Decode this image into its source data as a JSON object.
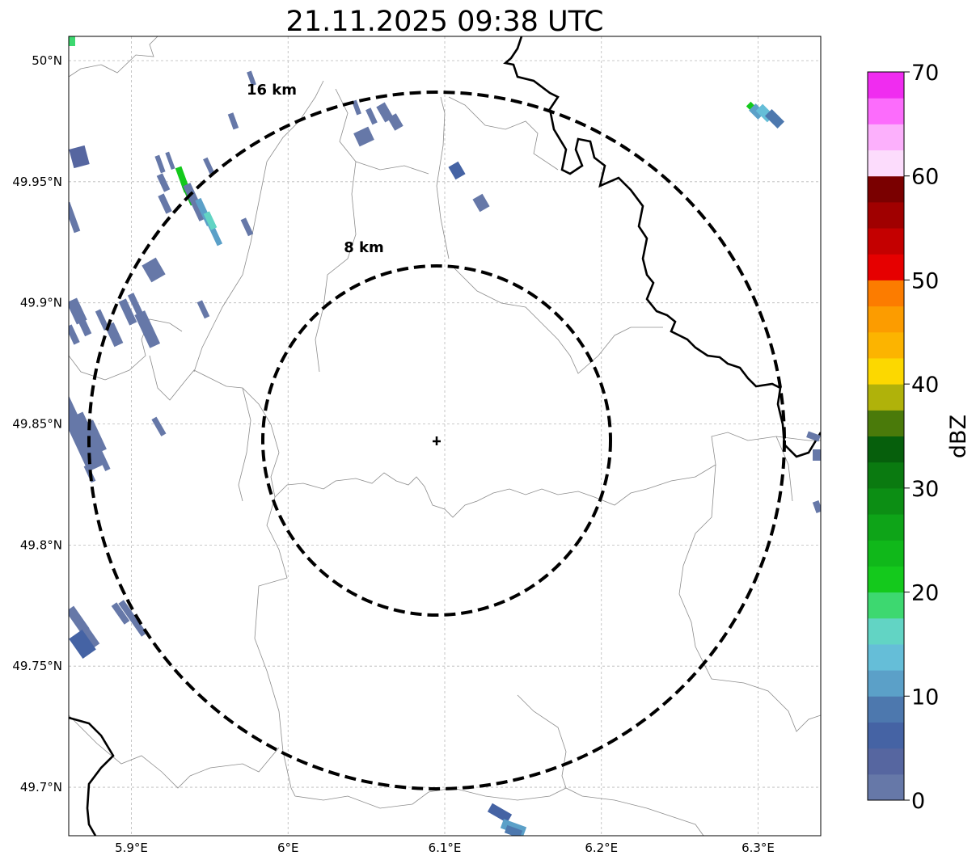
{
  "title": "21.11.2025 09:38 UTC",
  "map": {
    "lon_ticks": [
      {
        "value": 5.9,
        "label": "5.9°E"
      },
      {
        "value": 6.0,
        "label": "6°E"
      },
      {
        "value": 6.1,
        "label": "6.1°E"
      },
      {
        "value": 6.2,
        "label": "6.2°E"
      },
      {
        "value": 6.3,
        "label": "6.3°E"
      }
    ],
    "lat_ticks": [
      {
        "value": 50.0,
        "label": "50°N"
      },
      {
        "value": 49.95,
        "label": "49.95°N"
      },
      {
        "value": 49.9,
        "label": "49.9°N"
      },
      {
        "value": 49.85,
        "label": "49.85°N"
      },
      {
        "value": 49.8,
        "label": "49.8°N"
      },
      {
        "value": 49.75,
        "label": "49.75°N"
      },
      {
        "value": 49.7,
        "label": "49.7°N"
      }
    ],
    "extent": {
      "lon_min": 5.86,
      "lon_max": 6.34,
      "lat_min": 49.68,
      "lat_max": 50.01
    },
    "radar_site": {
      "lon": 6.095,
      "lat": 49.843,
      "marker": "cross-icon"
    },
    "rings": [
      {
        "label": "8 km",
        "radius_km": 8
      },
      {
        "label": "16 km",
        "radius_km": 16
      }
    ]
  },
  "colorbar": {
    "label": "dBZ",
    "ticks": [
      "0",
      "10",
      "20",
      "30",
      "40",
      "50",
      "60",
      "70"
    ],
    "min": 0,
    "max": 70,
    "step": 2.5,
    "colors": [
      "#6678a8",
      "#5666a0",
      "#4563a4",
      "#4d78ae",
      "#5ba0c8",
      "#65bed8",
      "#62d4c4",
      "#3dd870",
      "#14c91c",
      "#10b81a",
      "#0ea418",
      "#0c8e14",
      "#0a7a10",
      "#065f0c",
      "#4a7a0a",
      "#b0b20a",
      "#fcd800",
      "#fcb400",
      "#fc9c00",
      "#fc7c00",
      "#e60000",
      "#c40000",
      "#a00000",
      "#7a0000",
      "#fcdcfc",
      "#fcb0fc",
      "#fc6cfc",
      "#f02cf0"
    ]
  }
}
